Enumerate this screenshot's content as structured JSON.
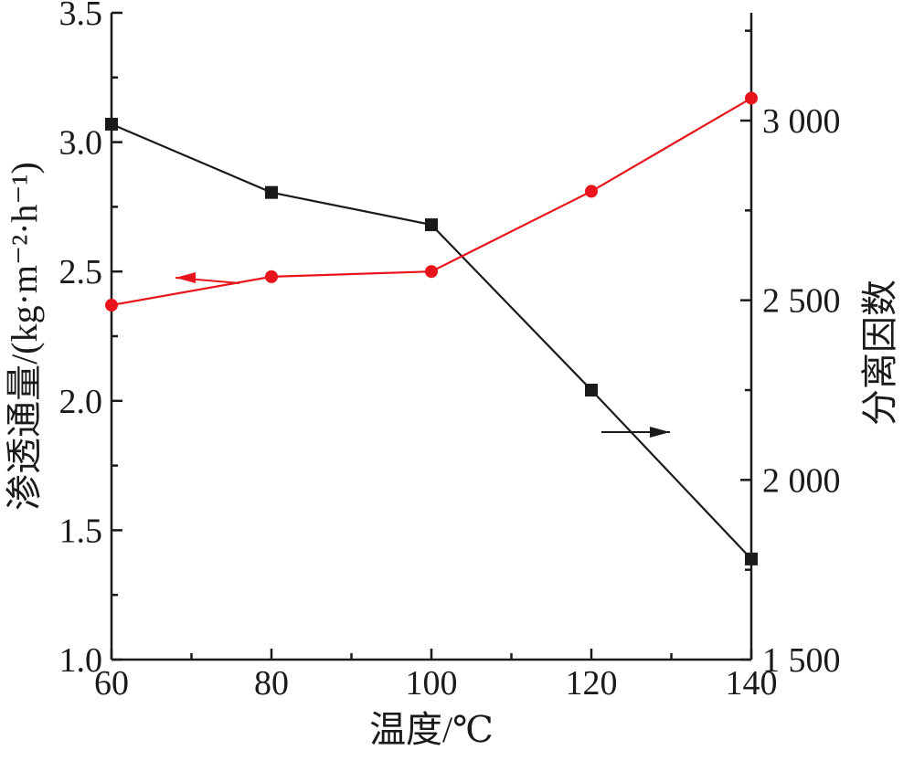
{
  "chart_data": {
    "type": "line",
    "title": "",
    "xlabel": "温度/℃",
    "ylabel_left": "渗透通量/(kg·m⁻²·h⁻¹)",
    "ylabel_right": "分离因数",
    "xlim": [
      60,
      140
    ],
    "ylim_left": [
      1.0,
      3.5
    ],
    "ylim_right": [
      1500,
      3300
    ],
    "x_ticks": [
      60,
      80,
      100,
      120,
      140
    ],
    "x_tick_labels": [
      "60",
      "80",
      "100",
      "120",
      "140"
    ],
    "y_left_ticks": [
      1.0,
      1.5,
      2.0,
      2.5,
      3.0,
      3.5
    ],
    "y_left_tick_labels": [
      "1.0",
      "1.5",
      "2.0",
      "2.5",
      "3.0",
      "3.5"
    ],
    "y_right_ticks": [
      1500,
      2000,
      2500,
      3000
    ],
    "y_right_tick_labels": [
      "1 500",
      "2 000",
      "2 500",
      "3 000"
    ],
    "grid": false,
    "legend": "none",
    "series": [
      {
        "axis": "right",
        "color": "#1a1a1a",
        "marker": "square",
        "x": [
          60,
          80,
          100,
          120,
          140
        ],
        "y": [
          2990,
          2800,
          2710,
          2250,
          1780
        ]
      },
      {
        "axis": "left",
        "color": "#e8141b",
        "marker": "circle",
        "x": [
          60,
          80,
          100,
          120,
          140
        ],
        "y": [
          2.37,
          2.48,
          2.5,
          2.81,
          3.17
        ]
      }
    ],
    "annotations": [
      {
        "type": "arrow",
        "direction": "left",
        "points_to_axis": "left",
        "color": "#e8141b"
      },
      {
        "type": "arrow",
        "direction": "right",
        "points_to_axis": "right",
        "color": "#1a1a1a"
      }
    ]
  }
}
